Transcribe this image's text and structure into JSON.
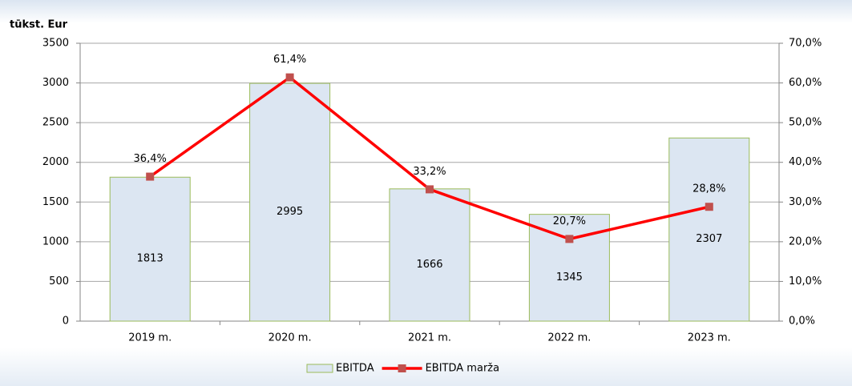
{
  "chart_data": {
    "type": "bar",
    "y_axis_label": "tūkst. Eur",
    "categories": [
      "2019 m.",
      "2020 m.",
      "2021 m.",
      "2022 m.",
      "2023 m."
    ],
    "series": [
      {
        "name": "EBITDA",
        "type": "bar",
        "color": "#dce6f2",
        "edge_color": "#9bbb59",
        "values": [
          1813,
          2995,
          1666,
          1345,
          2307
        ]
      },
      {
        "name": "EBITDA marža",
        "type": "line",
        "axis": "y2",
        "color": "#ff0000",
        "marker_color": "#c0504d",
        "values": [
          36.4,
          61.4,
          33.2,
          20.7,
          28.8
        ],
        "value_labels": [
          "36,4%",
          "61,4%",
          "33,2%",
          "20,7%",
          "28,8%"
        ]
      }
    ],
    "ylim": [
      0,
      3500
    ],
    "yticks": [
      0,
      500,
      1000,
      1500,
      2000,
      2500,
      3000,
      3500
    ],
    "y2lim": [
      0,
      70
    ],
    "y2ticks": [
      {
        "value": 0,
        "label": "0,0%"
      },
      {
        "value": 10,
        "label": "10,0%"
      },
      {
        "value": 20,
        "label": "20,0%"
      },
      {
        "value": 30,
        "label": "30,0%"
      },
      {
        "value": 40,
        "label": "40,0%"
      },
      {
        "value": 50,
        "label": "50,0%"
      },
      {
        "value": 60,
        "label": "60,0%"
      },
      {
        "value": 70,
        "label": "70,0%"
      }
    ],
    "grid": true,
    "legend": "bottom"
  }
}
